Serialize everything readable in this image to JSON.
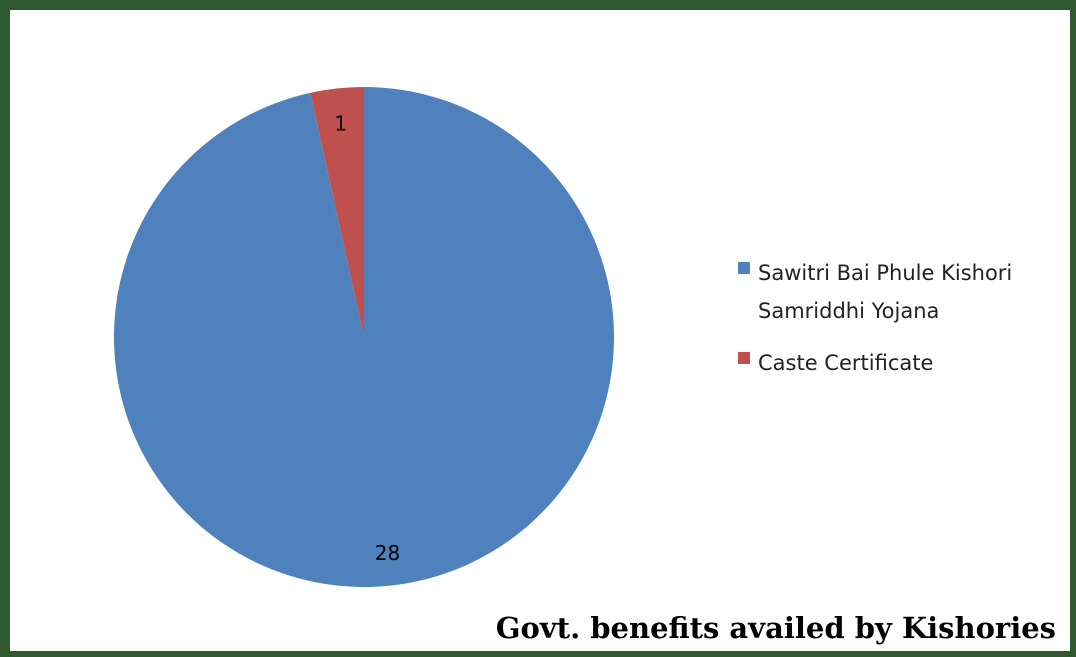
{
  "chart_data": {
    "type": "pie",
    "categories": [
      "Sawitri Bai Phule Kishori Samriddhi Yojana",
      "Caste Certificate"
    ],
    "values": [
      28,
      1
    ],
    "colors": [
      "#4f81bd",
      "#c0504d"
    ],
    "data_labels": [
      "28",
      "1"
    ],
    "legend": {
      "placement": "right",
      "entries": [
        {
          "lines": [
            "Sawitri Bai Phule Kishori",
            "Samriddhi Yojana"
          ],
          "color": "#4f81bd"
        },
        {
          "lines": [
            "Caste Certificate"
          ],
          "color": "#c0504d"
        }
      ]
    },
    "caption": "Govt. benefits availed by Kishories"
  }
}
